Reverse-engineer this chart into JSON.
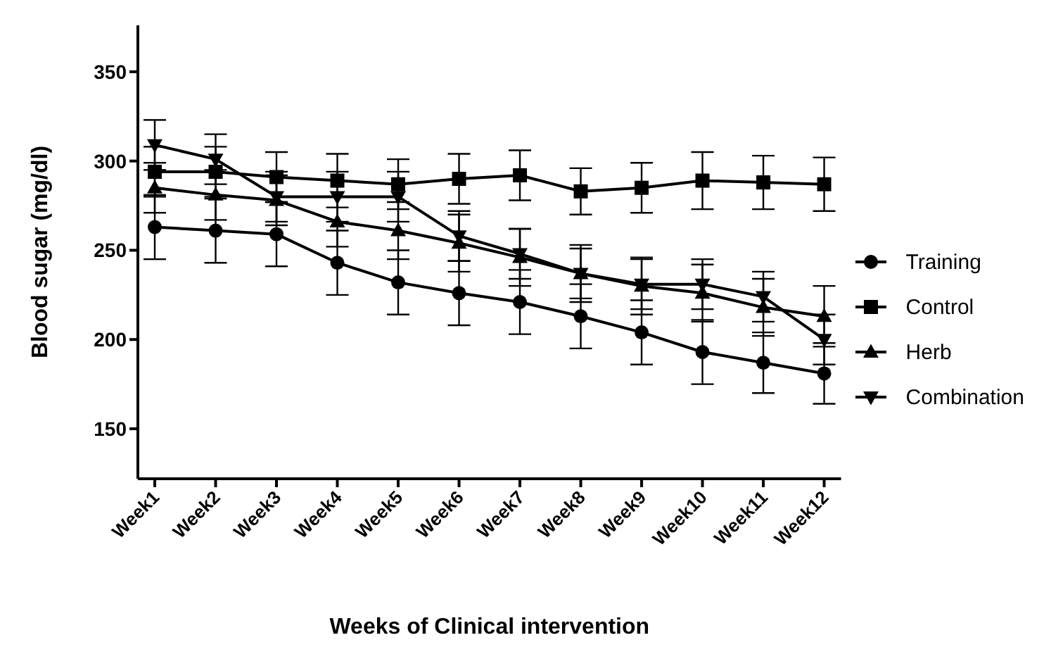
{
  "chart_data": {
    "type": "line",
    "xlabel": "Weeks of Clinical intervention",
    "ylabel": "Blood sugar (mg/dl)",
    "categories": [
      "Week1",
      "Week2",
      "Week3",
      "Week4",
      "Week5",
      "Week6",
      "Week7",
      "Week8",
      "Week9",
      "Week10",
      "Week11",
      "Week12"
    ],
    "ylim": [
      122,
      376
    ],
    "yticks": [
      150,
      200,
      250,
      300,
      350
    ],
    "grid": false,
    "legend": "right",
    "series": [
      {
        "name": "Training",
        "color": "#000000",
        "marker": "circle",
        "values": [
          263,
          261,
          259,
          243,
          232,
          226,
          221,
          213,
          204,
          193,
          187,
          181
        ],
        "errors": [
          18,
          18,
          18,
          18,
          18,
          18,
          18,
          18,
          18,
          18,
          17,
          17
        ]
      },
      {
        "name": "Control",
        "color": "#000000",
        "marker": "square",
        "values": [
          294,
          294,
          291,
          289,
          287,
          290,
          292,
          283,
          285,
          289,
          288,
          287
        ],
        "errors": [
          14,
          14,
          14,
          15,
          14,
          14,
          14,
          13,
          14,
          16,
          15,
          15
        ]
      },
      {
        "name": "Herb",
        "color": "#000000",
        "marker": "triangle",
        "values": [
          285,
          281,
          278,
          266,
          261,
          254,
          246,
          237,
          230,
          226,
          218,
          213
        ],
        "errors": [
          14,
          14,
          14,
          14,
          16,
          16,
          16,
          16,
          16,
          16,
          16,
          17
        ]
      },
      {
        "name": "Combination",
        "color": "#000000",
        "marker": "triangle-down",
        "values": [
          309,
          301,
          280,
          280,
          280,
          258,
          248,
          237,
          231,
          231,
          224,
          200
        ],
        "errors": [
          14,
          14,
          14,
          14,
          14,
          14,
          14,
          14,
          14,
          14,
          14,
          14
        ]
      }
    ]
  }
}
